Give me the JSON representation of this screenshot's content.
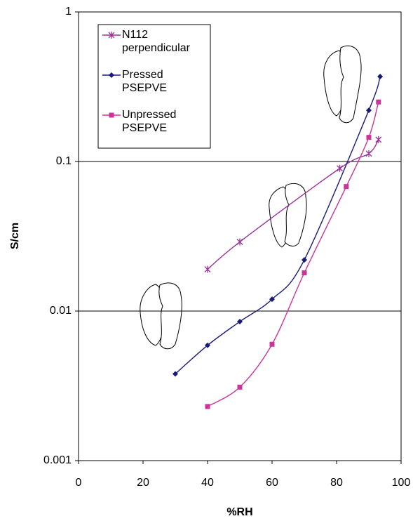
{
  "chart_data": {
    "type": "line",
    "xlabel": "%RH",
    "ylabel": "S/cm",
    "xlim": [
      0,
      100
    ],
    "xticks": [
      0,
      20,
      40,
      60,
      80,
      100
    ],
    "ylim": [
      0.001,
      1
    ],
    "yticks": [
      0.001,
      0.01,
      0.1,
      1
    ],
    "ylog": true,
    "grid": true,
    "legend": "upper left",
    "series": [
      {
        "name": "N112 perpendicular",
        "color": "#993399",
        "marker": "star",
        "x": [
          40,
          50,
          81,
          90,
          93
        ],
        "values": [
          0.019,
          0.029,
          0.09,
          0.113,
          0.14
        ]
      },
      {
        "name": "Pressed PSEPVE",
        "color": "#1a1a7a",
        "marker": "diamond",
        "x": [
          30,
          40,
          50,
          60,
          70,
          90,
          93.5
        ],
        "values": [
          0.0038,
          0.0059,
          0.0085,
          0.012,
          0.022,
          0.22,
          0.37
        ]
      },
      {
        "name": "Unpressed PSEPVE",
        "color": "#cc3399",
        "marker": "square",
        "x": [
          40,
          50,
          60,
          70,
          83,
          90,
          93
        ],
        "values": [
          0.0023,
          0.0031,
          0.006,
          0.018,
          0.068,
          0.145,
          0.25
        ]
      }
    ]
  }
}
